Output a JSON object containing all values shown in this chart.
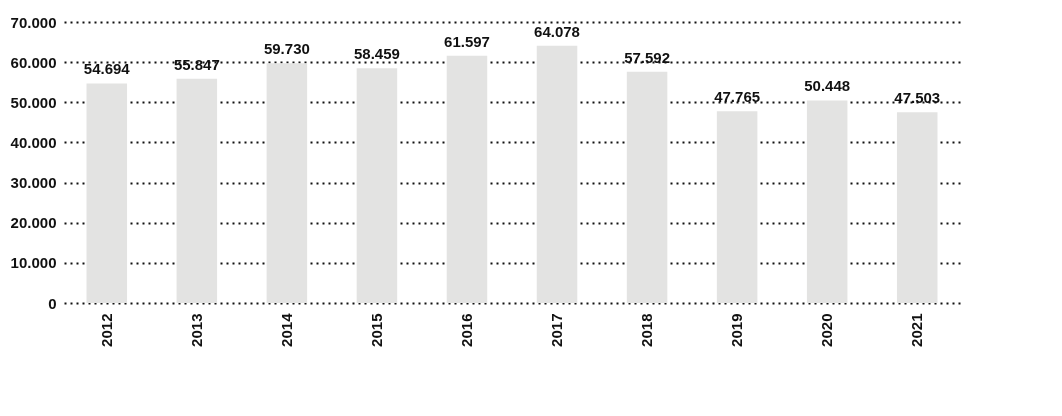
{
  "chart_data": {
    "type": "bar",
    "categories": [
      "2012",
      "2013",
      "2014",
      "2015",
      "2016",
      "2017",
      "2018",
      "2019",
      "2020",
      "2021"
    ],
    "values": [
      54694,
      55847,
      59730,
      58459,
      61597,
      64078,
      57592,
      47765,
      50448,
      47503
    ],
    "color": "#e3e3e2",
    "ylim": [
      0,
      70000
    ],
    "yticks": [
      {
        "value": 0,
        "label": "0"
      },
      {
        "value": 10000,
        "label": "10.000"
      },
      {
        "value": 20000,
        "label": "20.000"
      },
      {
        "value": 30000,
        "label": "30.000"
      },
      {
        "value": 40000,
        "label": "40.000"
      },
      {
        "value": 50000,
        "label": "50.000"
      },
      {
        "value": 60000,
        "label": "60.000"
      },
      {
        "value": 70000,
        "label": "70.000"
      }
    ],
    "grid": "y",
    "value_labels": [
      "54.694",
      "55.847",
      "59.730",
      "58.459",
      "61.597",
      "64.078",
      "57.592",
      "47.765",
      "50.448",
      "47.503"
    ]
  }
}
